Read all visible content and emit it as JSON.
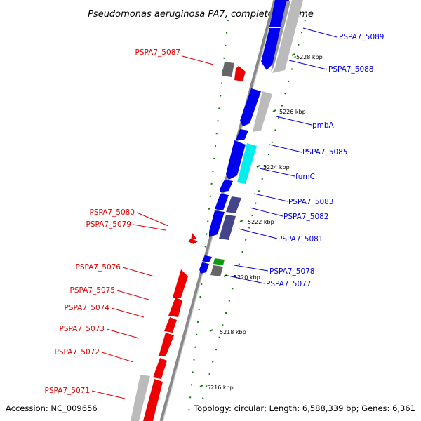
{
  "title": "Pseudomonas aeruginosa PA7, complete genome",
  "footer": {
    "accession": "Accession: NC_009656",
    "topology": "Topology: circular; Length: 6,588,339 bp; Genes: 6,361"
  },
  "colors": {
    "forward_gene": "#0000ee",
    "reverse_gene": "#ee0000",
    "other_gene": "#bbbbbb",
    "dark_gene": "#666666",
    "cyan_gene": "#00eeee",
    "purple_gene": "#44448a",
    "green_gene": "#119911",
    "backbone": "#888888",
    "ticks": "#117711"
  },
  "scale_labels": [
    "5228 kbp",
    "5226 kbp",
    "5224 kbp",
    "5222 kbp",
    "5220 kbp",
    "5218 kbp",
    "5216 kbp"
  ],
  "right_labels": [
    "PSPA7_5089",
    "PSPA7_5088",
    "pmbA",
    "PSPA7_5085",
    "fumC",
    "PSPA7_5083",
    "PSPA7_5082",
    "PSPA7_5081",
    "PSPA7_5078",
    "PSPA7_5077"
  ],
  "left_labels": [
    "PSPA7_5087",
    "PSPA7_5080",
    "PSPA7_5079",
    "PSPA7_5076",
    "PSPA7_5075",
    "PSPA7_5074",
    "PSPA7_5073",
    "PSPA7_5072",
    "PSPA7_5071"
  ]
}
